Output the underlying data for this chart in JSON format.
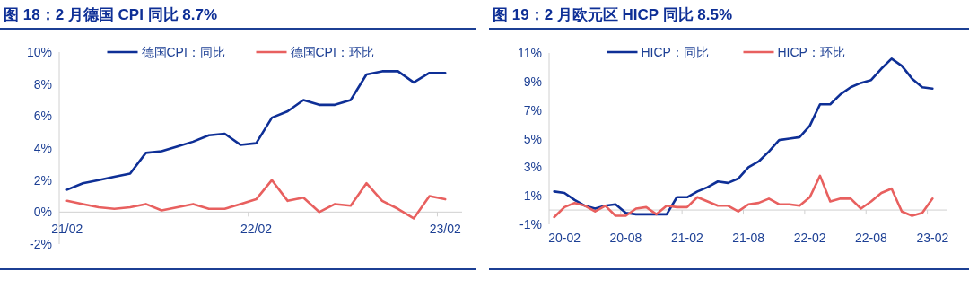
{
  "chart_data": [
    {
      "type": "line",
      "title": "图 18：2 月德国 CPI 同比 8.7%",
      "categories": [
        "21/02",
        null,
        null,
        null,
        null,
        null,
        null,
        null,
        null,
        null,
        null,
        null,
        "22/02",
        null,
        null,
        null,
        null,
        null,
        null,
        null,
        null,
        null,
        null,
        null,
        "23/02"
      ],
      "series": [
        {
          "name": "德国CPI：同比",
          "color": "#0e2f96",
          "values": [
            1.4,
            1.8,
            2.0,
            2.2,
            2.4,
            3.7,
            3.8,
            4.1,
            4.4,
            4.8,
            4.9,
            4.2,
            4.3,
            5.9,
            6.3,
            7.0,
            6.7,
            6.7,
            7.0,
            8.6,
            8.8,
            8.8,
            8.1,
            8.7,
            8.7
          ]
        },
        {
          "name": "德国CPI：环比",
          "color": "#e8605f",
          "values": [
            0.7,
            0.5,
            0.3,
            0.2,
            0.3,
            0.5,
            0.1,
            0.3,
            0.5,
            0.2,
            0.2,
            0.5,
            0.8,
            2.0,
            0.7,
            0.9,
            0.0,
            0.5,
            0.4,
            1.8,
            0.7,
            0.2,
            -0.4,
            1.0,
            0.8
          ]
        }
      ],
      "ylim": [
        -2,
        10
      ],
      "yticks": [
        {
          "value": -2,
          "label": "-2%"
        },
        {
          "value": 0,
          "label": "0%"
        },
        {
          "value": 2,
          "label": "2%"
        },
        {
          "value": 4,
          "label": "4%"
        },
        {
          "value": 6,
          "label": "6%"
        },
        {
          "value": 8,
          "label": "8%"
        },
        {
          "value": 10,
          "label": "10%"
        }
      ],
      "grid": false,
      "legend": "top",
      "marker": "none",
      "line_style": "solid"
    },
    {
      "type": "line",
      "title": "图 19：2 月欧元区 HICP 同比 8.5%",
      "categories": [
        null,
        "20-02",
        null,
        null,
        null,
        null,
        null,
        "20-08",
        null,
        null,
        null,
        null,
        null,
        "21-02",
        null,
        null,
        null,
        null,
        null,
        "21-08",
        null,
        null,
        null,
        null,
        null,
        "22-02",
        null,
        null,
        null,
        null,
        null,
        "22-08",
        null,
        null,
        null,
        null,
        null,
        "23-02"
      ],
      "series": [
        {
          "name": "HICP：同比",
          "color": "#0e2f96",
          "values": [
            1.3,
            1.2,
            0.7,
            0.3,
            0.1,
            0.3,
            0.4,
            -0.2,
            -0.3,
            -0.3,
            -0.3,
            -0.3,
            0.9,
            0.9,
            1.3,
            1.6,
            2.0,
            1.9,
            2.2,
            3.0,
            3.4,
            4.1,
            4.9,
            5.0,
            5.1,
            5.9,
            7.4,
            7.4,
            8.1,
            8.6,
            8.9,
            9.1,
            9.9,
            10.6,
            10.1,
            9.2,
            8.6,
            8.5
          ]
        },
        {
          "name": "HICP：环比",
          "color": "#e8605f",
          "values": [
            -0.5,
            0.2,
            0.5,
            0.3,
            -0.1,
            0.3,
            -0.4,
            -0.4,
            0.1,
            0.2,
            -0.3,
            0.3,
            0.2,
            0.2,
            0.9,
            0.6,
            0.3,
            0.3,
            -0.1,
            0.4,
            0.5,
            0.8,
            0.4,
            0.4,
            0.3,
            0.9,
            2.4,
            0.6,
            0.8,
            0.8,
            0.1,
            0.6,
            1.2,
            1.5,
            -0.1,
            -0.4,
            -0.2,
            0.8
          ]
        }
      ],
      "ylim": [
        -1,
        11
      ],
      "yticks": [
        {
          "value": -1,
          "label": "-1%"
        },
        {
          "value": 1,
          "label": "1%"
        },
        {
          "value": 3,
          "label": "3%"
        },
        {
          "value": 5,
          "label": "5%"
        },
        {
          "value": 7,
          "label": "7%"
        },
        {
          "value": 9,
          "label": "9%"
        },
        {
          "value": 11,
          "label": "11%"
        }
      ],
      "grid": false,
      "legend": "top",
      "marker": "none",
      "line_style": "solid"
    }
  ]
}
